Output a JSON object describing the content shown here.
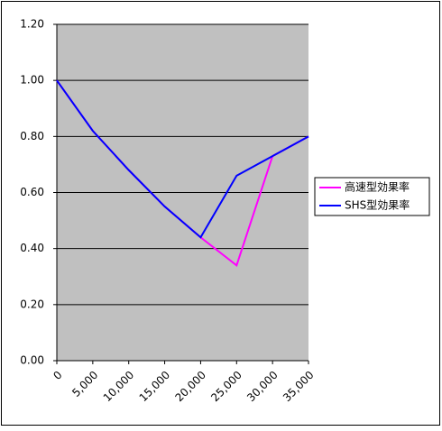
{
  "chart_data": {
    "type": "line",
    "x": [
      0,
      5000,
      10000,
      15000,
      20000,
      25000,
      30000,
      35000
    ],
    "series": [
      {
        "name": "高速型効果率",
        "color": "#ff00ff",
        "values": [
          1.0,
          0.82,
          0.68,
          0.55,
          0.44,
          0.34,
          0.73,
          0.8
        ]
      },
      {
        "name": "SHS型効果率",
        "color": "#0000ff",
        "values": [
          1.0,
          0.82,
          0.68,
          0.55,
          0.44,
          0.66,
          0.73,
          0.8
        ]
      }
    ],
    "xlim": [
      0,
      35000
    ],
    "xticks": [
      0,
      {
        "value": 5000,
        "label": "5,000"
      },
      {
        "value": 10000,
        "label": "10,000"
      },
      {
        "value": 15000,
        "label": "15,000"
      },
      {
        "value": 20000,
        "label": "20,000"
      },
      {
        "value": 25000,
        "label": "25,000"
      },
      {
        "value": 30000,
        "label": "30,000"
      },
      {
        "value": 35000,
        "label": "35,000"
      }
    ],
    "ylim": [
      0,
      1.2
    ],
    "yticks": [
      {
        "value": 0,
        "label": "0.00"
      },
      {
        "value": 0.2,
        "label": "0.20"
      },
      {
        "value": 0.4,
        "label": "0.40"
      },
      {
        "value": 0.6,
        "label": "0.60"
      },
      {
        "value": 0.8,
        "label": "0.80"
      },
      {
        "value": 1.0,
        "label": "1.00"
      },
      {
        "value": 1.2,
        "label": "1.20"
      }
    ],
    "grid": true,
    "legend": "right"
  }
}
